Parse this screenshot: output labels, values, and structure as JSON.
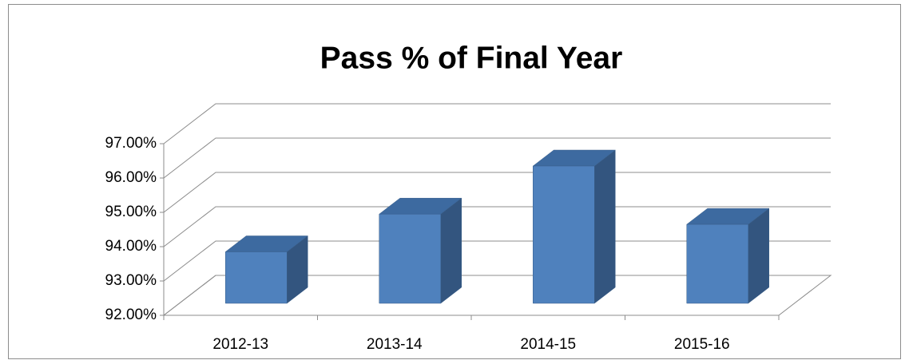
{
  "chart_data": {
    "type": "bar3d",
    "title": "Pass % of Final Year",
    "categories": [
      "2012-13",
      "2013-14",
      "2014-15",
      "2015-16"
    ],
    "values": [
      93.5,
      94.6,
      96.0,
      94.3
    ],
    "color": "#4f81bd",
    "ylim": [
      92,
      97
    ],
    "yticks": [
      {
        "value": 92,
        "label": "92.00%"
      },
      {
        "value": 93,
        "label": "93.00%"
      },
      {
        "value": 94,
        "label": "94.00%"
      },
      {
        "value": 95,
        "label": "95.00%"
      },
      {
        "value": 96,
        "label": "96.00%"
      },
      {
        "value": 97,
        "label": "97.00%"
      }
    ],
    "grid": true
  }
}
